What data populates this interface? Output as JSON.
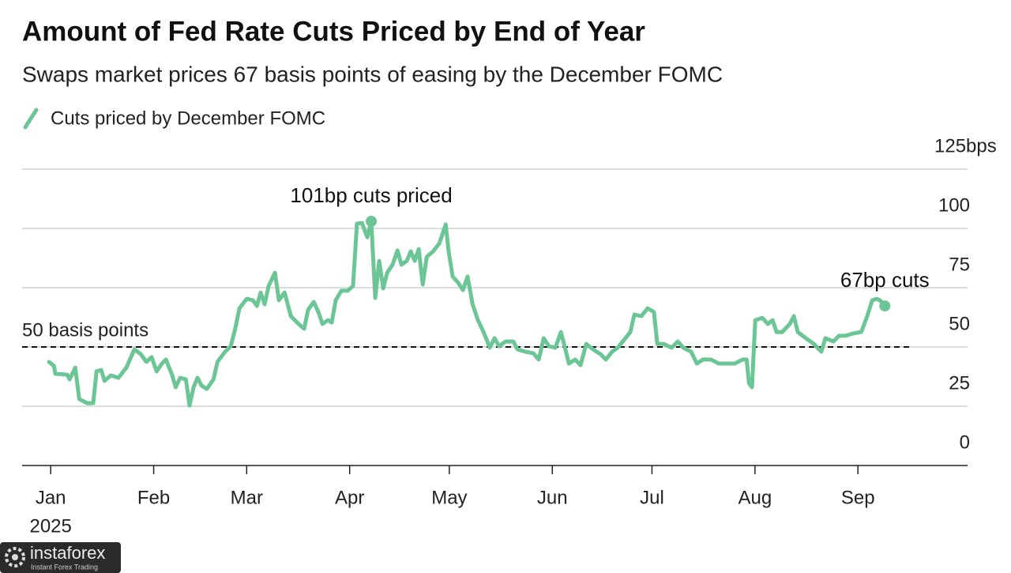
{
  "chart_data": {
    "type": "line",
    "title": "Amount of Fed Rate Cuts Priced by End of Year",
    "subtitle": "Swaps market prices 67 basis points of easing by the December FOMC",
    "x": [
      -0.5,
      1,
      1.4,
      5,
      5.7,
      7.4,
      8.6,
      11,
      12.8,
      13.8,
      15.2,
      16.2,
      18.1,
      20.4,
      22.8,
      25.2,
      27.1,
      28.8,
      30.4,
      31.9,
      33.5,
      34.7,
      36.6,
      37.6,
      39,
      40.7,
      41.8,
      43,
      44.2,
      45.4,
      47,
      49,
      50.2,
      52.5,
      54.2,
      55.6,
      56.8,
      59,
      60.9,
      62.1,
      63.2,
      64.4,
      65.6,
      67.5,
      68.7,
      70.4,
      72.3,
      74.6,
      76.3,
      77.5,
      79.2,
      80.6,
      81.8,
      83.5,
      84.6,
      85.8,
      87.5,
      89.4,
      91,
      92.2,
      93.7,
      95.3,
      96.5,
      97.7,
      98.9,
      100.1,
      101.3,
      102.9,
      104.4,
      105.6,
      107.2,
      108.4,
      109.6,
      110.8,
      112,
      113.2,
      115.1,
      117,
      118.9,
      119.8,
      121,
      122.7,
      124.1,
      125.5,
      127,
      128.6,
      130.3,
      132.2,
      133.6,
      135,
      136.9,
      139.3,
      140.5,
      142.9,
      145.3,
      146.9,
      148.4,
      150,
      151.9,
      153.6,
      154.8,
      156,
      157.9,
      159.5,
      161.2,
      162.6,
      164.3,
      165.5,
      167.1,
      169,
      170.7,
      172.6,
      174.5,
      175.7,
      177.8,
      179.7,
      181.6,
      182.6,
      184.5,
      186.9,
      188.8,
      190.4,
      192.8,
      194.5,
      196.4,
      198.8,
      201.1,
      203.5,
      205.9,
      208.3,
      209.5,
      210.2,
      211.1,
      212.1,
      214.2,
      215.9,
      217.3,
      218.5,
      220.2,
      222.5,
      223.7,
      224.9,
      227.3,
      229.7,
      232,
      233.2,
      235.6,
      237.3,
      239.2,
      241.6,
      244,
      245.8,
      247.3,
      248.7,
      249.6,
      251.1
    ],
    "series": [
      {
        "name": "Cuts priced by December FOMC",
        "color": "#6cc595",
        "values": [
          43.7,
          42,
          38.7,
          38.3,
          36.3,
          41.3,
          28,
          26.3,
          26.3,
          39.7,
          40.3,
          35.7,
          38,
          37,
          41.3,
          49,
          47,
          43.7,
          45.7,
          39.7,
          43,
          44.7,
          38,
          33,
          37,
          36.3,
          25.3,
          33,
          37,
          33.7,
          32.3,
          36.3,
          43.7,
          48,
          50.3,
          58,
          66.3,
          70.3,
          69.7,
          67.3,
          73,
          68,
          75.7,
          81.3,
          69.7,
          73,
          63,
          59.7,
          57.7,
          65.7,
          69,
          64.7,
          59.7,
          61.3,
          60.3,
          69.7,
          73.7,
          73.7,
          75.7,
          102,
          102.3,
          96.3,
          103,
          70.7,
          86.3,
          74.7,
          81.3,
          84.7,
          90.7,
          84.7,
          86.3,
          90.3,
          86.3,
          91.3,
          76.3,
          88,
          90.3,
          93.7,
          101.7,
          90.3,
          79.7,
          77,
          74,
          79.7,
          68,
          61.3,
          56.3,
          49.7,
          53.7,
          50.3,
          52.3,
          52.3,
          49,
          48,
          47.3,
          44.7,
          53.7,
          50.3,
          49.7,
          56.3,
          49.7,
          43,
          44.7,
          42.3,
          51.3,
          49.7,
          48,
          47,
          44.7,
          48,
          49.7,
          53,
          56.3,
          63.7,
          63,
          66.3,
          64.7,
          51.3,
          51.3,
          49.7,
          52.3,
          49.7,
          48,
          43,
          44.7,
          44.7,
          43,
          43,
          43,
          44.7,
          44.7,
          34.7,
          33,
          61.3,
          62.3,
          59.7,
          61.3,
          56.3,
          56.3,
          59.7,
          63,
          56.3,
          53.7,
          51.3,
          48,
          53.7,
          52.3,
          54.7,
          54.7,
          55.7,
          56.3,
          63,
          69.7,
          70.3,
          69.7,
          67.3
        ]
      }
    ],
    "xlim": [
      -8.6,
      276
    ],
    "xticks": [
      {
        "value": 0,
        "label": "Jan"
      },
      {
        "value": 31,
        "label": "Feb"
      },
      {
        "value": 59,
        "label": "Mar"
      },
      {
        "value": 90,
        "label": "Apr"
      },
      {
        "value": 120,
        "label": "May"
      },
      {
        "value": 151,
        "label": "Jun"
      },
      {
        "value": 181,
        "label": "Jul"
      },
      {
        "value": 212,
        "label": "Aug"
      },
      {
        "value": 243,
        "label": "Sep"
      }
    ],
    "year_label": "2025",
    "ylim": [
      0,
      125
    ],
    "yticks": [
      0,
      25,
      50,
      75,
      100,
      {
        "value": 125,
        "label": "125bps"
      }
    ],
    "grid": true,
    "reference_line": {
      "value": 50,
      "label": "50 basis points"
    },
    "annotations": [
      {
        "text": "101bp cuts priced",
        "at": "max"
      },
      {
        "text": "67bp cuts",
        "at": "last"
      }
    ]
  },
  "watermark": {
    "name": "instaforex",
    "tagline": "Instant Forex Trading"
  }
}
